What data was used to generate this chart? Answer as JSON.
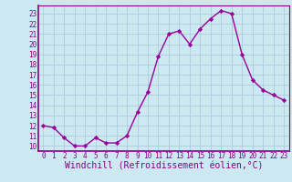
{
  "x": [
    0,
    1,
    2,
    3,
    4,
    5,
    6,
    7,
    8,
    9,
    10,
    11,
    12,
    13,
    14,
    15,
    16,
    17,
    18,
    19,
    20,
    21,
    22,
    23
  ],
  "y": [
    12,
    11.8,
    10.8,
    10.0,
    10.0,
    10.8,
    10.3,
    10.3,
    11.0,
    13.3,
    15.3,
    18.8,
    21.0,
    21.3,
    20.0,
    21.5,
    22.5,
    23.3,
    23.0,
    19.0,
    16.5,
    15.5,
    15.0,
    14.5
  ],
  "line_color": "#990099",
  "marker": "D",
  "markersize": 2.2,
  "linewidth": 1.0,
  "xlabel": "Windchill (Refroidissement éolien,°C)",
  "xlabel_fontsize": 7.0,
  "ylabel_ticks": [
    10,
    11,
    12,
    13,
    14,
    15,
    16,
    17,
    18,
    19,
    20,
    21,
    22,
    23
  ],
  "xlim": [
    -0.5,
    23.5
  ],
  "ylim": [
    9.5,
    23.8
  ],
  "bg_color": "#cce8f0",
  "grid_color": "#aaccdd",
  "tick_color": "#880088",
  "tick_fontsize": 5.5,
  "spine_color": "#880088"
}
